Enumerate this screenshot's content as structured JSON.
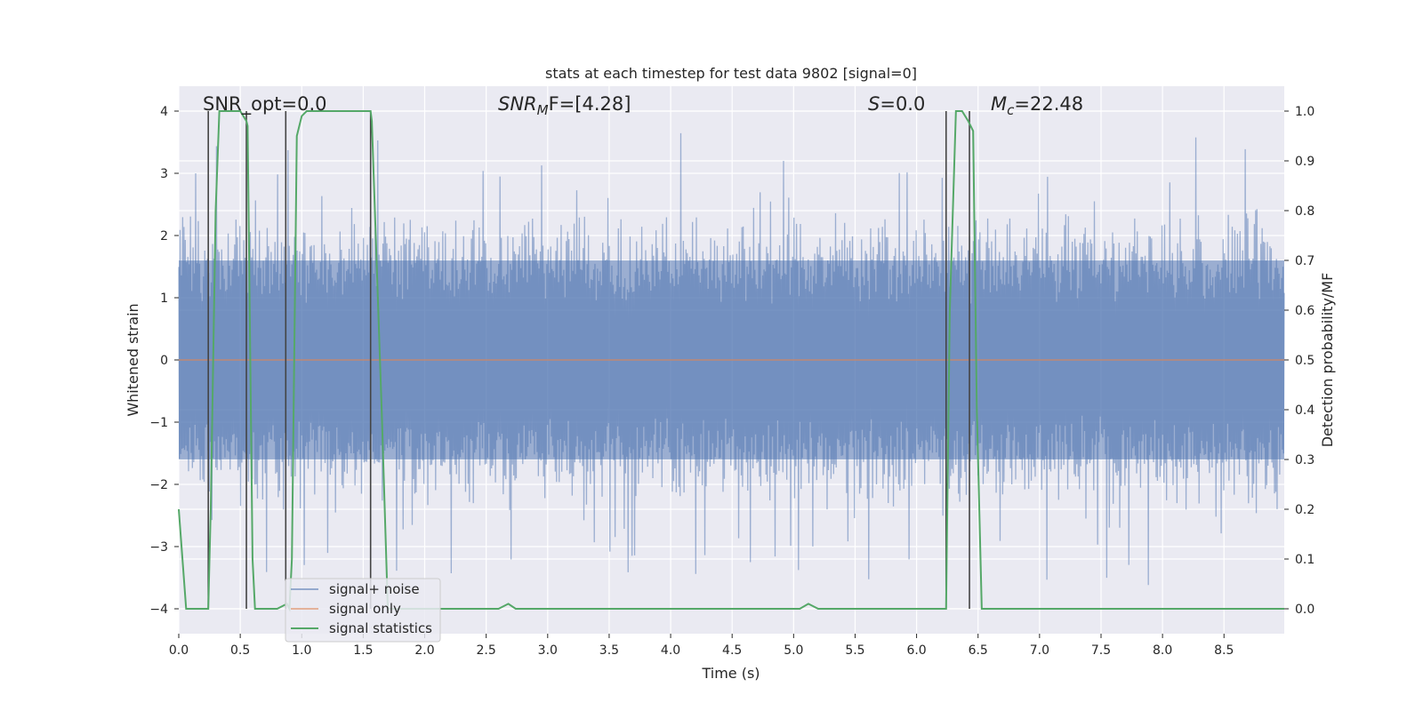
{
  "chart_data": {
    "type": "line",
    "title": "stats at each timestep for test data 9802 [signal=0]",
    "xlabel": "Time (s)",
    "ylabel": "Whitened strain",
    "ylabel_right": "Detection probability/MF",
    "xlim": [
      0.0,
      8.99
    ],
    "ylim": [
      -4.4,
      4.4
    ],
    "ylim_right": [
      -0.05,
      1.05
    ],
    "xticks": [
      "0.0",
      "0.5",
      "1.0",
      "1.5",
      "2.0",
      "2.5",
      "3.0",
      "3.5",
      "4.0",
      "4.5",
      "5.0",
      "5.5",
      "6.0",
      "6.5",
      "7.0",
      "7.5",
      "8.0",
      "8.5"
    ],
    "xtick_values": [
      0.0,
      0.5,
      1.0,
      1.5,
      2.0,
      2.5,
      3.0,
      3.5,
      4.0,
      4.5,
      5.0,
      5.5,
      6.0,
      6.5,
      7.0,
      7.5,
      8.0,
      8.5
    ],
    "yticks": [
      "−4",
      "−3",
      "−2",
      "−1",
      "0",
      "1",
      "2",
      "3",
      "4"
    ],
    "ytick_values": [
      -4,
      -3,
      -2,
      -1,
      0,
      1,
      2,
      3,
      4
    ],
    "yticks_right": [
      "0.0",
      "0.1",
      "0.2",
      "0.3",
      "0.4",
      "0.5",
      "0.6",
      "0.7",
      "0.8",
      "0.9",
      "1.0"
    ],
    "ytick_values_right": [
      0.0,
      0.1,
      0.2,
      0.3,
      0.4,
      0.5,
      0.6,
      0.7,
      0.8,
      0.9,
      1.0
    ],
    "grid": true,
    "annotations": {
      "snr_opt": "SNR_opt=0.0",
      "snr_mf_main": "SNR",
      "snr_mf_sub": "M",
      "snr_mf_rest": "F=[4.28]",
      "s_main": "S",
      "s_rest": "=0.0",
      "mc_main": "M",
      "mc_sub": "c",
      "mc_rest": "=22.48"
    },
    "noise_envelope": {
      "dense_band": 1.6,
      "typical_peak": 2.4,
      "max_peak": 4.0
    },
    "series": [
      {
        "name": "signal+ noise",
        "color": "#4c72b0",
        "note": "whitened noisy strain, amplitude mostly within ±2.5, peaks up to about ±4"
      },
      {
        "name": "signal only",
        "color": "#dd8452",
        "values_constant": 0.0
      },
      {
        "name": "signal statistics",
        "color": "#55a868",
        "x": [
          0.0,
          0.06,
          0.24,
          0.26,
          0.3,
          0.33,
          0.5,
          0.55,
          0.56,
          0.6,
          0.62,
          0.65,
          0.8,
          0.88,
          0.9,
          0.92,
          0.96,
          1.0,
          1.04,
          1.56,
          1.57,
          1.65,
          1.7,
          2.6,
          2.68,
          2.74,
          5.05,
          5.12,
          5.2,
          6.24,
          6.27,
          6.32,
          6.37,
          6.42,
          6.46,
          6.49,
          6.53,
          8.99
        ],
        "values": [
          0.2,
          0.0,
          0.0,
          0.2,
          0.8,
          1.0,
          1.0,
          0.98,
          0.97,
          0.1,
          0.0,
          0.0,
          0.0,
          0.01,
          0.0,
          0.1,
          0.95,
          0.99,
          1.0,
          1.0,
          0.98,
          0.4,
          0.0,
          0.0,
          0.01,
          0.0,
          0.0,
          0.01,
          0.0,
          0.0,
          0.6,
          1.0,
          1.0,
          0.98,
          0.96,
          0.4,
          0.0,
          0.0
        ]
      }
    ],
    "vlines": [
      0.24,
      0.55,
      0.87,
      1.56,
      6.24,
      6.43
    ],
    "legend": {
      "placement": "lower-left",
      "entries": [
        "signal+ noise",
        "signal only",
        "signal statistics"
      ]
    }
  }
}
